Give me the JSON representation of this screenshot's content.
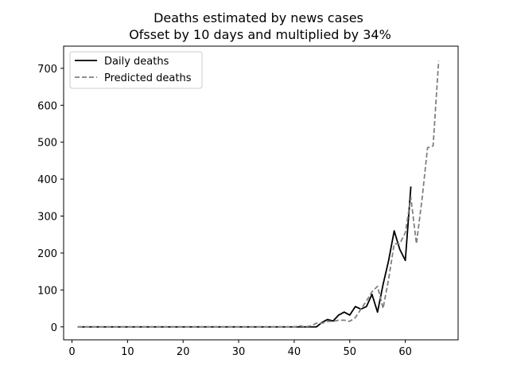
{
  "chart_data": {
    "type": "line",
    "title": "Deaths estimated by news cases",
    "subtitle": "Ofsset by 10 days and multiplied by 34%",
    "xlabel": "",
    "ylabel": "",
    "xlim": [
      -1.5,
      69.5
    ],
    "ylim": [
      -35,
      760
    ],
    "xticks": [
      0,
      10,
      20,
      30,
      40,
      50,
      60
    ],
    "yticks": [
      0,
      100,
      200,
      300,
      400,
      500,
      600,
      700
    ],
    "grid": false,
    "legend_position": "top-left",
    "series": [
      {
        "name": "Daily deaths",
        "color": "#000000",
        "dash": "solid",
        "x": [
          1,
          2,
          3,
          4,
          5,
          6,
          7,
          8,
          9,
          10,
          11,
          12,
          13,
          14,
          15,
          16,
          17,
          18,
          19,
          20,
          21,
          22,
          23,
          24,
          25,
          26,
          27,
          28,
          29,
          30,
          31,
          32,
          33,
          34,
          35,
          36,
          37,
          38,
          39,
          40,
          41,
          42,
          43,
          44,
          45,
          46,
          47,
          48,
          49,
          50,
          51,
          52,
          53,
          54,
          55,
          56,
          57,
          58,
          59,
          60,
          61
        ],
        "y": [
          0,
          0,
          0,
          0,
          0,
          0,
          0,
          0,
          0,
          0,
          0,
          0,
          0,
          0,
          0,
          0,
          0,
          0,
          0,
          0,
          0,
          0,
          0,
          0,
          0,
          0,
          0,
          0,
          0,
          0,
          0,
          0,
          0,
          0,
          0,
          0,
          0,
          0,
          0,
          0,
          0,
          0,
          0,
          0,
          12,
          20,
          16,
          32,
          40,
          32,
          55,
          48,
          55,
          88,
          40,
          115,
          180,
          260,
          210,
          180,
          380
        ]
      },
      {
        "name": "Predicted deaths",
        "color": "#808080",
        "dash": "dashed",
        "x": [
          1,
          2,
          3,
          4,
          5,
          6,
          7,
          8,
          9,
          10,
          11,
          12,
          13,
          14,
          15,
          16,
          17,
          18,
          19,
          20,
          21,
          22,
          23,
          24,
          25,
          26,
          27,
          28,
          29,
          30,
          31,
          32,
          33,
          34,
          35,
          36,
          37,
          38,
          39,
          40,
          41,
          42,
          43,
          44,
          45,
          46,
          47,
          48,
          49,
          50,
          51,
          52,
          53,
          54,
          55,
          56,
          57,
          58,
          59,
          60,
          61,
          62,
          63,
          64,
          65,
          66
        ],
        "y": [
          0,
          0,
          0,
          0,
          0,
          0,
          0,
          0,
          0,
          0,
          0,
          0,
          0,
          0,
          0,
          0,
          0,
          0,
          0,
          0,
          0,
          0,
          0,
          0,
          0,
          0,
          0,
          0,
          0,
          0,
          0,
          0,
          0,
          0,
          0,
          0,
          0,
          0,
          0,
          0,
          3,
          0,
          3,
          10,
          10,
          15,
          15,
          18,
          18,
          15,
          25,
          48,
          70,
          95,
          110,
          50,
          130,
          225,
          225,
          255,
          350,
          225,
          345,
          485,
          490,
          720
        ]
      }
    ]
  }
}
